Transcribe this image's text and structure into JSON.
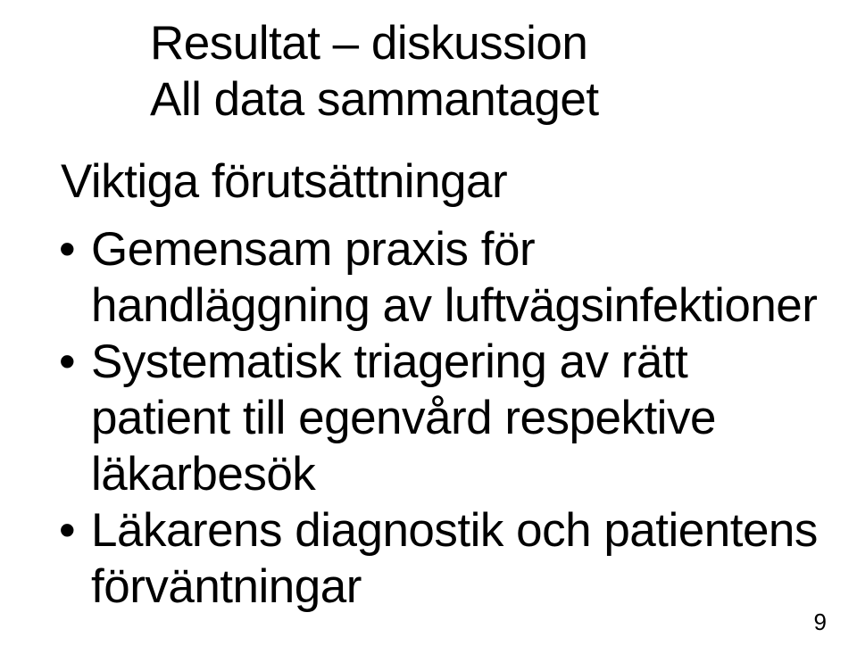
{
  "slide": {
    "title_line1": "Resultat – diskussion",
    "title_line2": "All data sammantaget",
    "subheading": "Viktiga förutsättningar",
    "bullets": [
      "Gemensam praxis för handläggning av luftvägsinfektioner",
      "Systematisk triagering av rätt patient till egenvård respektive läkarbesök",
      "Läkarens diagnostik och patientens förväntningar"
    ],
    "page_number": "9"
  },
  "style": {
    "background_color": "#ffffff",
    "text_color": "#000000",
    "title_fontsize": 53,
    "body_fontsize": 53,
    "pagenum_fontsize": 26,
    "font_family": "Arial, Helvetica, sans-serif"
  }
}
